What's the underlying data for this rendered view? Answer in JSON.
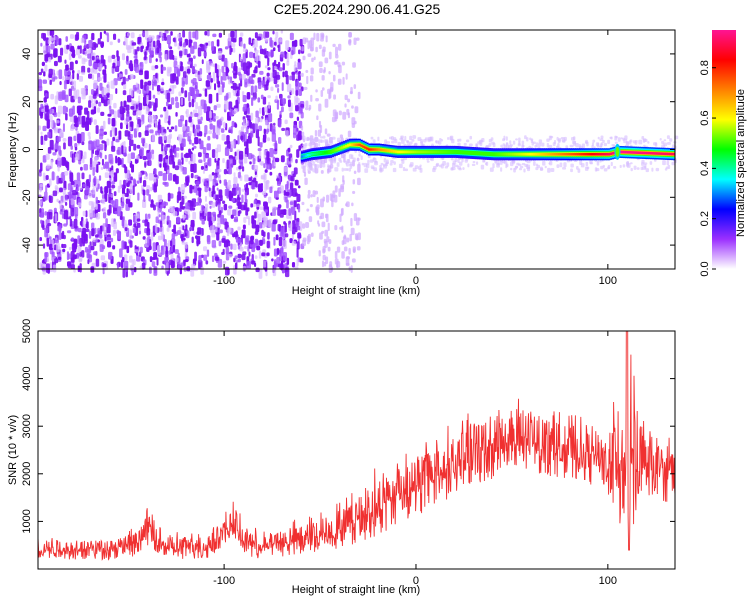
{
  "figure": {
    "title": "C2E5.2024.290.06.41.G25"
  },
  "chart_data": [
    {
      "type": "heatmap",
      "title": "C2E5.2024.290.06.41.G25",
      "xlabel": "Height of straight line (km)",
      "ylabel": "Frequency (Hz)",
      "xlim": [
        -197,
        135
      ],
      "ylim": [
        -50,
        50
      ],
      "xticks": [
        -100,
        0,
        100
      ],
      "yticks": [
        -40,
        -20,
        0,
        20,
        40
      ],
      "colorbar": {
        "label": "Normalized spectral amplitude",
        "range": [
          0.0,
          0.95
        ],
        "ticks": [
          0.0,
          0.2,
          0.4,
          0.6,
          0.8
        ],
        "colors": [
          "#ffffff",
          "#9b30ff",
          "#0000ff",
          "#00ffff",
          "#00ff00",
          "#ffff00",
          "#ff8000",
          "#ff0000",
          "#ff1493"
        ]
      },
      "signal_line": {
        "x": [
          -60,
          -55,
          -45,
          -35,
          -30,
          -25,
          -20,
          -10,
          0,
          20,
          40,
          60,
          80,
          100,
          105,
          135
        ],
        "freq": [
          -3,
          -2,
          -1,
          2,
          2,
          0,
          0,
          -1,
          -1,
          -1,
          -2,
          -2,
          -2,
          -2,
          -1,
          -2
        ],
        "amplitude": [
          0.3,
          0.4,
          0.5,
          0.6,
          0.75,
          0.8,
          0.7,
          0.6,
          0.55,
          0.5,
          0.5,
          0.6,
          0.75,
          0.9,
          0.95,
          0.9
        ]
      },
      "noise_region": {
        "x_range": [
          -197,
          -60
        ],
        "x_sparse_range": [
          -60,
          -30
        ]
      }
    },
    {
      "type": "line",
      "xlabel": "Height of straight line (km)",
      "ylabel": "SNR (10 * v/v)",
      "xlim": [
        -197,
        135
      ],
      "ylim": [
        0,
        5000
      ],
      "xticks": [
        -100,
        0,
        100
      ],
      "yticks": [
        1000,
        2000,
        3000,
        4000,
        5000
      ],
      "color": "#f03030",
      "envelope": {
        "x": [
          -197,
          -160,
          -145,
          -140,
          -130,
          -110,
          -100,
          -95,
          -90,
          -80,
          -60,
          -40,
          -20,
          0,
          20,
          40,
          60,
          80,
          100,
          110,
          120,
          135
        ],
        "min": [
          200,
          200,
          250,
          500,
          200,
          200,
          400,
          600,
          300,
          200,
          300,
          400,
          700,
          1100,
          1500,
          1900,
          2000,
          1900,
          1600,
          500,
          1400,
          1400
        ],
        "max": [
          700,
          700,
          900,
          1300,
          800,
          800,
          1200,
          1500,
          1000,
          800,
          1100,
          1400,
          2200,
          2700,
          3100,
          3600,
          3600,
          3300,
          3000,
          5000,
          3000,
          2900
        ]
      }
    }
  ]
}
